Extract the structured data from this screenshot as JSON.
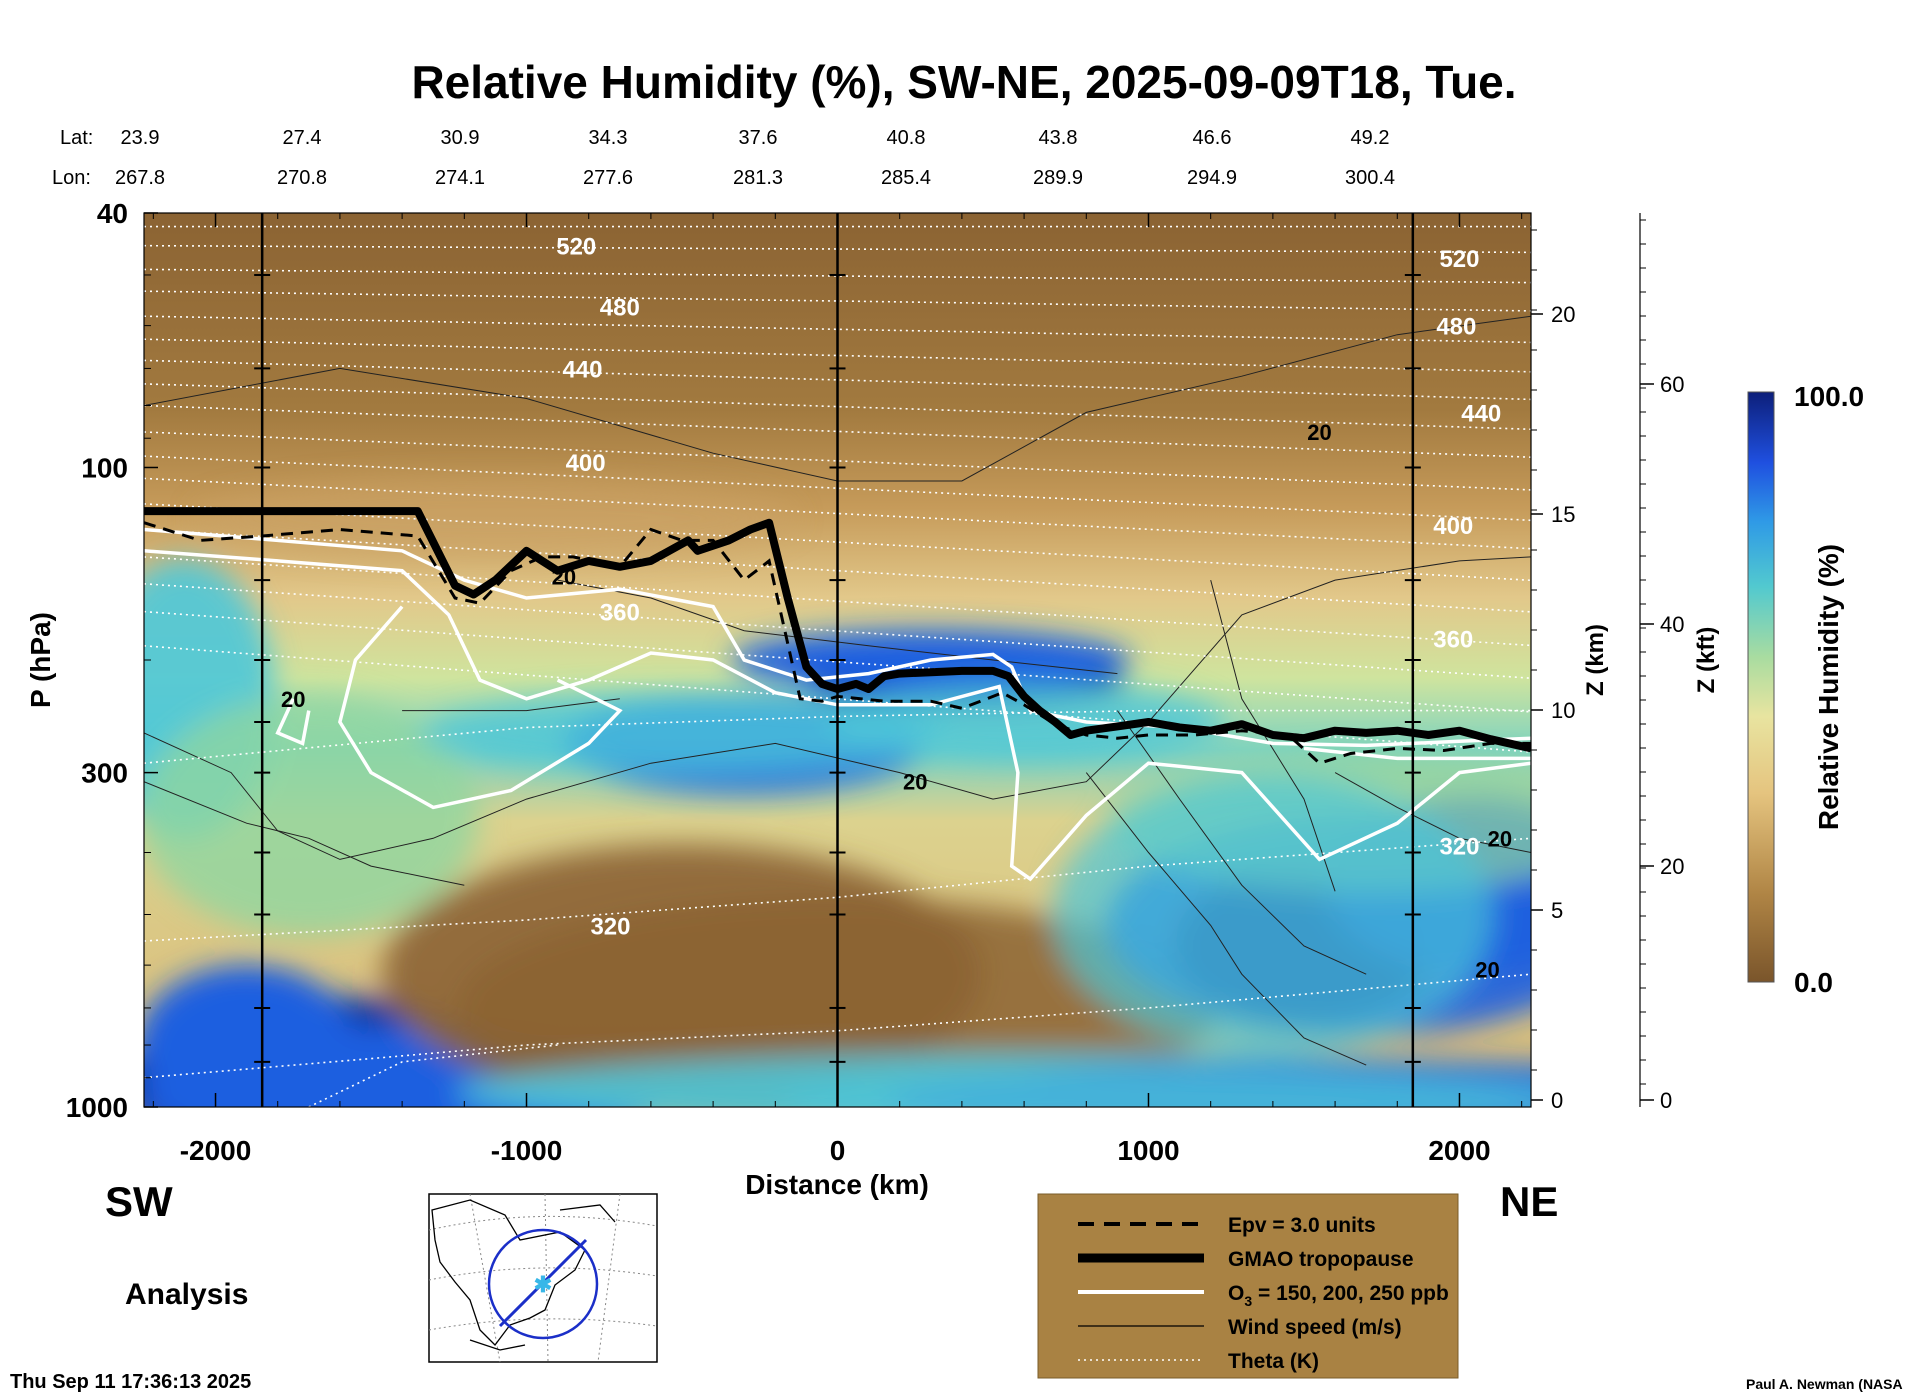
{
  "title": "Relative Humidity (%), SW-NE, 2025-09-09T18, Tue.",
  "header": {
    "lat_label": "Lat:",
    "lon_label": "Lon:",
    "lat": [
      "23.9",
      "27.4",
      "30.9",
      "34.3",
      "37.6",
      "40.8",
      "43.8",
      "46.6",
      "49.2"
    ],
    "lon": [
      "267.8",
      "270.8",
      "274.1",
      "277.6",
      "281.3",
      "285.4",
      "289.9",
      "294.9",
      "300.4"
    ]
  },
  "direction_left": "SW",
  "direction_right": "NE",
  "run_label": "Analysis",
  "timestamp": "Thu Sep 11 17:36:13 2025",
  "credit": "Paul A. Newman (NASA",
  "legend": {
    "items": [
      {
        "style": "dashed",
        "label": "Epv = 3.0 units"
      },
      {
        "style": "thick",
        "label": "GMAO tropopause"
      },
      {
        "style": "white",
        "label_main": "O",
        "label_sub": "3",
        "label_rest": " = 150, 200, 250 ppb"
      },
      {
        "style": "thin",
        "label": "Wind speed (m/s)"
      },
      {
        "style": "dotted",
        "label": "Theta (K)"
      }
    ]
  },
  "colors": {
    "dry": "#8b6333",
    "tan": "#c9a266",
    "yellow": "#e8d590",
    "green": "#8fd6a0",
    "cyan": "#4cc6d8",
    "blue": "#1f5fe0",
    "navy": "#112a9a",
    "legend_bg": "#a98243"
  },
  "chart_data": {
    "type": "heatmap",
    "title": "Relative Humidity (%), SW-NE, 2025-09-09T18, Tue.",
    "xlabel": "Distance (km)",
    "ylabel": "P (hPa)",
    "y2label": "Z (km)",
    "y3label": "Z (kft)",
    "xlim": [
      -2230,
      2230
    ],
    "ylim_hpa": [
      1000,
      40
    ],
    "x_ticks": [
      -2000,
      -1000,
      0,
      1000,
      2000
    ],
    "x_tick_labels": [
      "-2000",
      "-1000",
      "0",
      "1000",
      "2000"
    ],
    "p_ticks": [
      40,
      100,
      300,
      1000
    ],
    "p_tick_labels": [
      "40",
      "100",
      "300",
      "1000"
    ],
    "z_km_ticks": [
      0,
      5,
      10,
      15,
      20
    ],
    "z_km_tick_labels": [
      "0",
      "5",
      "10",
      "15",
      "20"
    ],
    "z_kft_ticks": [
      0,
      20,
      40,
      60
    ],
    "z_kft_tick_labels": [
      "0",
      "20",
      "40",
      "60"
    ],
    "vertical_markers_km": [
      -1850,
      0,
      1850
    ],
    "colorbar": {
      "label": "Relative Humidity (%)",
      "min": 0.0,
      "max": 100.0,
      "min_label": "0.0",
      "max_label": "100.0"
    },
    "theta_levels_K": [
      320,
      360,
      400,
      440,
      480,
      520
    ],
    "theta_labels": [
      {
        "text": "520",
        "x": -840,
        "p": 45
      },
      {
        "text": "480",
        "x": -700,
        "p": 56
      },
      {
        "text": "440",
        "x": -820,
        "p": 70
      },
      {
        "text": "400",
        "x": -810,
        "p": 98
      },
      {
        "text": "360",
        "x": -700,
        "p": 168
      },
      {
        "text": "320",
        "x": -730,
        "p": 520
      },
      {
        "text": "520",
        "x": 2000,
        "p": 47
      },
      {
        "text": "480",
        "x": 1990,
        "p": 60
      },
      {
        "text": "440",
        "x": 2070,
        "p": 82
      },
      {
        "text": "400",
        "x": 1980,
        "p": 123
      },
      {
        "text": "360",
        "x": 1980,
        "p": 185
      },
      {
        "text": "320",
        "x": 2000,
        "p": 390
      }
    ],
    "wind_labels": [
      {
        "text": "20",
        "x": 1550,
        "p": 88
      },
      {
        "text": "20",
        "x": -880,
        "p": 148
      },
      {
        "text": "20",
        "x": -1750,
        "p": 230
      },
      {
        "text": "20",
        "x": 250,
        "p": 310
      },
      {
        "text": "20",
        "x": 2090,
        "p": 610
      },
      {
        "text": "20",
        "x": 2130,
        "p": 380
      }
    ],
    "tropopause_hpa": {
      "x": [
        -2230,
        -1350,
        -1230,
        -1170,
        -1100,
        -1000,
        -950,
        -900,
        -800,
        -700,
        -600,
        -480,
        -450,
        -350,
        -280,
        -220,
        -160,
        -100,
        -50,
        0,
        60,
        100,
        150,
        200,
        300,
        400,
        500,
        550,
        600,
        650,
        700,
        750,
        800,
        900,
        1000,
        1100,
        1200,
        1300,
        1400,
        1500,
        1600,
        1700,
        1800,
        1900,
        2000,
        2100,
        2230
      ],
      "p": [
        117,
        117,
        153,
        158,
        150,
        135,
        140,
        145,
        140,
        143,
        140,
        130,
        135,
        130,
        125,
        122,
        160,
        205,
        218,
        222,
        218,
        222,
        212,
        210,
        209,
        208,
        208,
        212,
        228,
        240,
        250,
        262,
        258,
        254,
        250,
        255,
        258,
        252,
        262,
        265,
        258,
        260,
        258,
        262,
        258,
        266,
        275
      ]
    },
    "epv_hpa": {
      "x": [
        -2230,
        -2050,
        -1850,
        -1600,
        -1350,
        -1230,
        -1150,
        -1050,
        -950,
        -850,
        -700,
        -600,
        -500,
        -400,
        -300,
        -220,
        -120,
        -50,
        0,
        150,
        300,
        400,
        480,
        530,
        600,
        700,
        800,
        900,
        1000,
        1150,
        1300,
        1450,
        1550,
        1650,
        1800,
        1950,
        2100,
        2230
      ],
      "p": [
        122,
        130,
        128,
        125,
        128,
        160,
        163,
        145,
        138,
        138,
        143,
        125,
        130,
        130,
        150,
        140,
        230,
        232,
        228,
        232,
        232,
        238,
        230,
        225,
        235,
        252,
        262,
        265,
        262,
        262,
        258,
        262,
        290,
        280,
        275,
        277,
        270,
        270
      ]
    },
    "colorscale": [
      "#7a552b",
      "#9a7138",
      "#c9a266",
      "#e8d590",
      "#d6e59a",
      "#8fd6a0",
      "#4cc6d8",
      "#2f8fe6",
      "#1f5fe0",
      "#112a9a"
    ]
  }
}
